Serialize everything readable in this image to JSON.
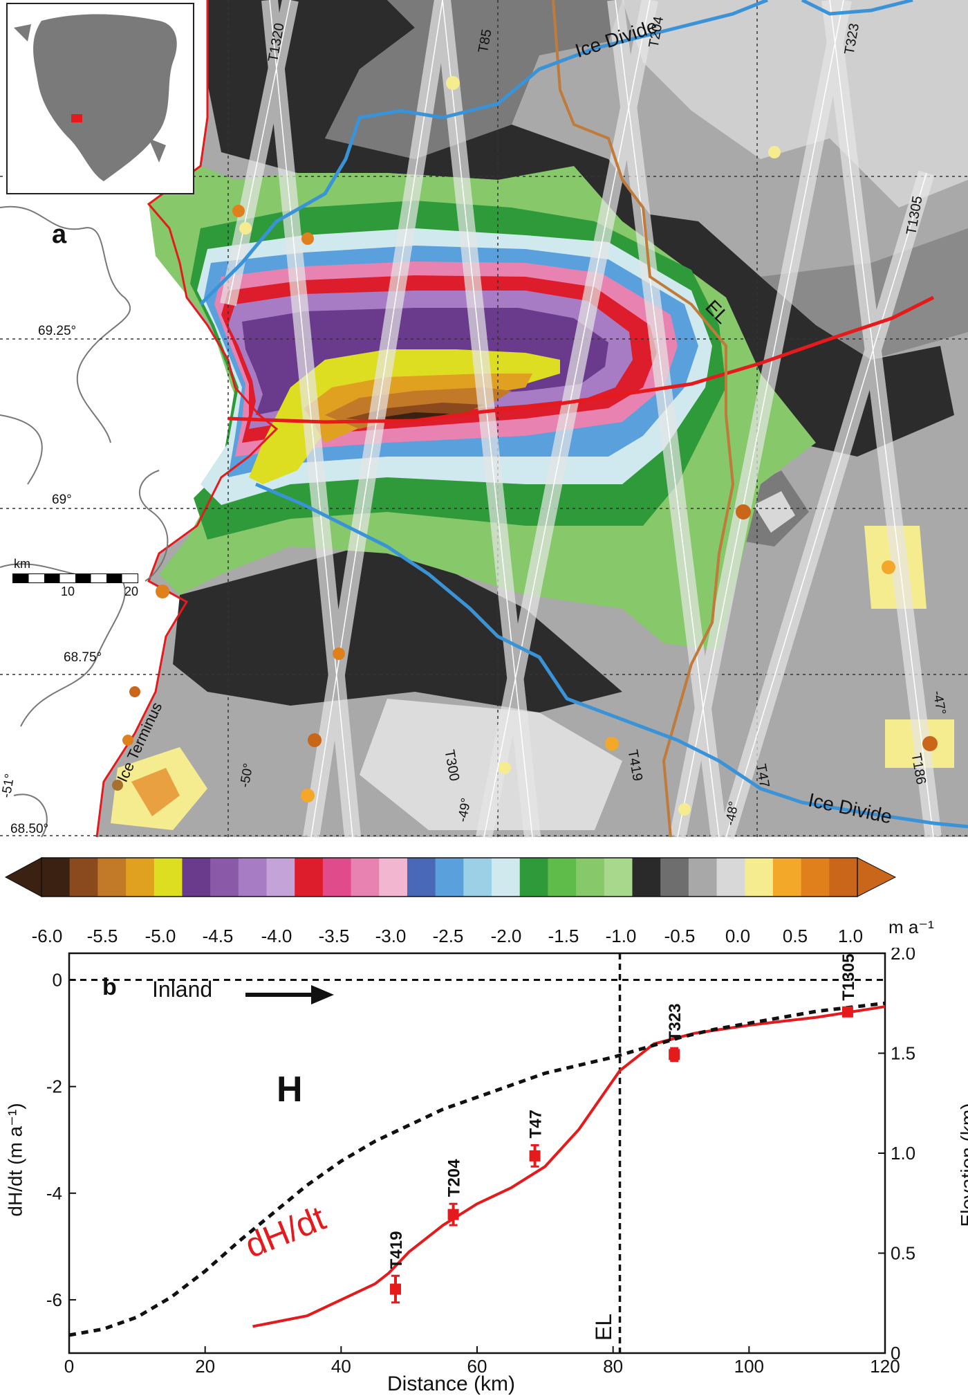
{
  "map": {
    "panel_letter": "a",
    "latitudes": [
      "69.25°",
      "69°",
      "68.75°",
      "68.50°"
    ],
    "longitudes": [
      "-51°",
      "-50°",
      "-49°",
      "-48°",
      "-47°"
    ],
    "tracks": [
      "T1320",
      "T85",
      "T204",
      "T323",
      "T1305",
      "T300",
      "T419",
      "T47",
      "T186"
    ],
    "ice_divide_labels": [
      "Ice Divide",
      "Ice Divide"
    ],
    "el_label": "EL",
    "ice_terminus_label": "Ice Terminus",
    "scale_bar": {
      "unit": "km",
      "ticks": [
        "10",
        "20"
      ]
    },
    "colors": {
      "ice_divide": "#3a93d6",
      "flowline": "#e41a1c",
      "el_line": "#c07a3a",
      "coast": "#e41a1c"
    }
  },
  "colorbar": {
    "ticks": [
      "-6.0",
      "-5.5",
      "-5.0",
      "-4.5",
      "-4.0",
      "-3.5",
      "-3.0",
      "-2.5",
      "-2.0",
      "-1.5",
      "-1.0",
      "-0.5",
      "0.0",
      "0.5",
      "1.0"
    ],
    "unit": "m a⁻¹",
    "colors": [
      "#3b2112",
      "#8a4a1e",
      "#c27a28",
      "#e0a020",
      "#dddd22",
      "#6a3a8c",
      "#8a5aa8",
      "#a77cc4",
      "#c4a4d8",
      "#dd1c2c",
      "#e04b8c",
      "#e882b0",
      "#f2b6d0",
      "#4a68b8",
      "#5aa0dc",
      "#9cd0e6",
      "#cfe9ee",
      "#2e9a3a",
      "#5fbc4a",
      "#86c86a",
      "#a8d88c",
      "#2a2a2a",
      "#6e6e6e",
      "#a8a8a8",
      "#d8d8d8",
      "#f5ec90",
      "#f3a82a",
      "#e0801c",
      "#c9661a"
    ]
  },
  "chart_data": {
    "type": "line",
    "panel_letter": "b",
    "xlabel": "Distance (km)",
    "ylabel_left": "dH/dt  (m a⁻¹)",
    "ylabel_right": "Elevation (km)",
    "xlim": [
      0,
      120
    ],
    "ylim_left": [
      -7,
      0.5
    ],
    "ylim_right": [
      0,
      2.0
    ],
    "x_ticks": [
      "0",
      "20",
      "40",
      "60",
      "80",
      "100",
      "120"
    ],
    "y_left_ticks": [
      "-6",
      "-4",
      "-2",
      "0"
    ],
    "y_right_ticks": [
      "0",
      "0.5",
      "1.0",
      "1.5",
      "2.0"
    ],
    "annotations": {
      "inland": "Inland",
      "H": "H",
      "dhdt": "dH/dt",
      "EL": "EL"
    },
    "el_x": 81,
    "series": [
      {
        "name": "dH/dt",
        "axis": "left",
        "x": [
          27,
          35,
          40,
          45,
          47,
          50,
          55,
          60,
          65,
          70,
          75,
          81,
          86,
          92,
          100,
          110,
          120
        ],
        "y": [
          -6.5,
          -6.3,
          -6.0,
          -5.7,
          -5.5,
          -5.1,
          -4.6,
          -4.2,
          -3.9,
          -3.5,
          -2.8,
          -1.7,
          -1.2,
          -1.0,
          -0.85,
          -0.7,
          -0.5
        ]
      },
      {
        "name": "H",
        "axis": "right",
        "x": [
          0,
          5,
          10,
          15,
          20,
          25,
          30,
          35,
          40,
          45,
          50,
          55,
          60,
          65,
          70,
          75,
          80,
          85,
          90,
          95,
          100,
          105,
          110,
          115,
          120
        ],
        "y": [
          0.09,
          0.12,
          0.18,
          0.28,
          0.41,
          0.56,
          0.7,
          0.84,
          0.96,
          1.06,
          1.14,
          1.22,
          1.28,
          1.34,
          1.4,
          1.44,
          1.48,
          1.53,
          1.58,
          1.62,
          1.65,
          1.68,
          1.71,
          1.73,
          1.75
        ]
      }
    ],
    "points": [
      {
        "label": "T419",
        "x": 48,
        "y": -5.8,
        "err": 0.25
      },
      {
        "label": "T204",
        "x": 56.5,
        "y": -4.4,
        "err": 0.2
      },
      {
        "label": "T47",
        "x": 68.5,
        "y": -3.3,
        "err": 0.2
      },
      {
        "label": "T323",
        "x": 89,
        "y": -1.4,
        "err": 0.12
      },
      {
        "label": "T1305",
        "x": 114.5,
        "y": -0.6,
        "err": 0.08
      }
    ]
  }
}
